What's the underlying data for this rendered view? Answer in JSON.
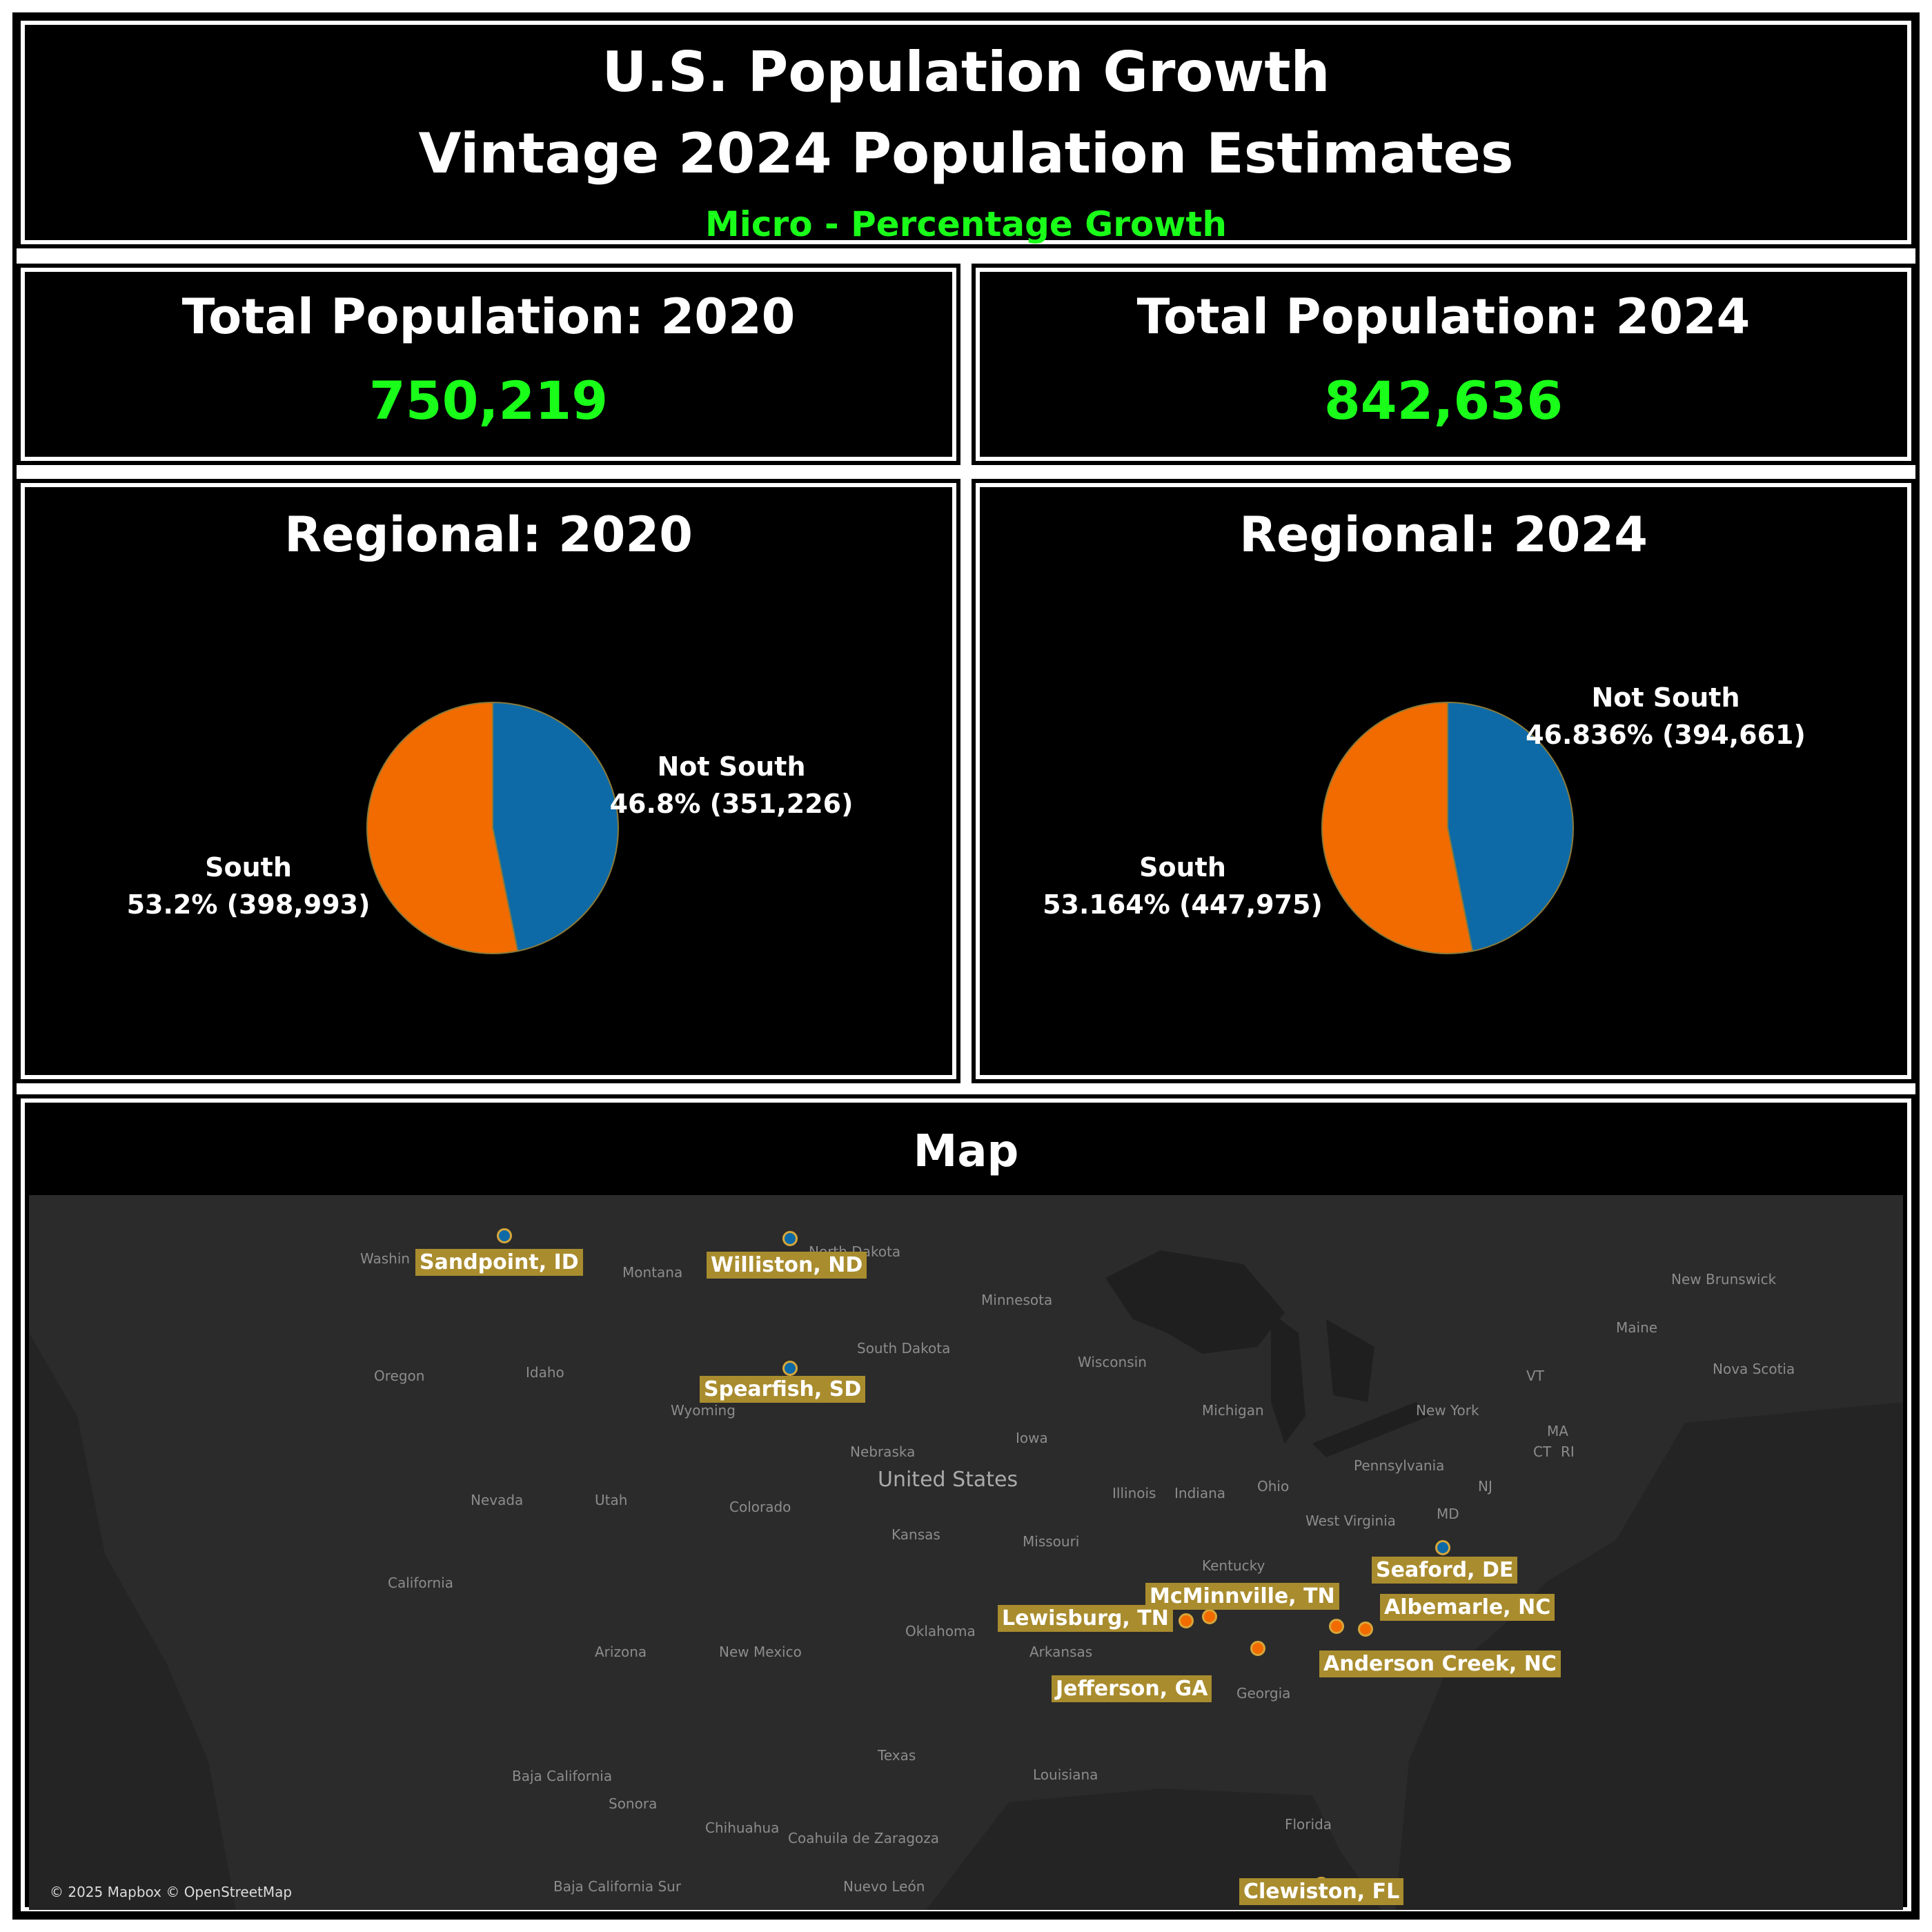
{
  "header": {
    "title_line1": "U.S. Population Growth",
    "title_line2": "Vintage 2024 Population Estimates",
    "subtitle": "Micro - Percentage Growth"
  },
  "totals": {
    "t2020_label": "Total Population: 2020",
    "t2020_value": "750,219",
    "t2024_label": "Total Population: 2024",
    "t2024_value": "842,636"
  },
  "colors": {
    "south": "#f26b00",
    "not_south": "#0e6aa6",
    "value_green": "#1aff1a",
    "label_bg": "#a98c2e"
  },
  "chart_data": [
    {
      "type": "pie",
      "title": "Regional: 2020",
      "slices": [
        {
          "name": "Not South",
          "value": 351226,
          "label": "46.8% (351,226)"
        },
        {
          "name": "South",
          "value": 398993,
          "label": "53.2% (398,993)"
        }
      ]
    },
    {
      "type": "pie",
      "title": "Regional: 2024",
      "slices": [
        {
          "name": "Not South",
          "value": 394661,
          "label": "46.836% (394,661)"
        },
        {
          "name": "South",
          "value": 447975,
          "label": "53.164% (447,975)"
        }
      ]
    }
  ],
  "map": {
    "title": "Map",
    "attribution": "© 2025 Mapbox © OpenStreetMap",
    "places": [
      {
        "name": "Sandpoint, ID",
        "region": "not-south"
      },
      {
        "name": "Williston, ND",
        "region": "not-south"
      },
      {
        "name": "Spearfish, SD",
        "region": "not-south"
      },
      {
        "name": "Seaford, DE",
        "region": "not-south"
      },
      {
        "name": "McMinnville, TN",
        "region": "south"
      },
      {
        "name": "Lewisburg, TN",
        "region": "south"
      },
      {
        "name": "Albemarle, NC",
        "region": "south"
      },
      {
        "name": "Anderson Creek, NC",
        "region": "south"
      },
      {
        "name": "Jefferson, GA",
        "region": "south"
      },
      {
        "name": "Clewiston, FL",
        "region": "south"
      }
    ],
    "geo_labels": [
      "Washin",
      "Montana",
      "North Dakota",
      "Minnesota",
      "Oregon",
      "Idaho",
      "South Dakota",
      "Wisconsin",
      "Michigan",
      "Wyoming",
      "Iowa",
      "Nebraska",
      "United States",
      "Nevada",
      "Utah",
      "Colorado",
      "Kansas",
      "Illinois",
      "Indiana",
      "Ohio",
      "Pennsylvania",
      "New York",
      "California",
      "Missouri",
      "Kentucky",
      "West Virginia",
      "Oklahoma",
      "Arkansas",
      "Arizona",
      "New Mexico",
      "Texas",
      "Louisiana",
      "Georgia",
      "Florida",
      "Sonora",
      "Chihuahua",
      "Coahuila de Zaragoza",
      "Nuevo León",
      "Baja California",
      "Baja California Sur",
      "Maine",
      "New Brunswick",
      "Nova Scotia",
      "VT",
      "MA",
      "CT",
      "RI",
      "NJ",
      "MD"
    ]
  }
}
